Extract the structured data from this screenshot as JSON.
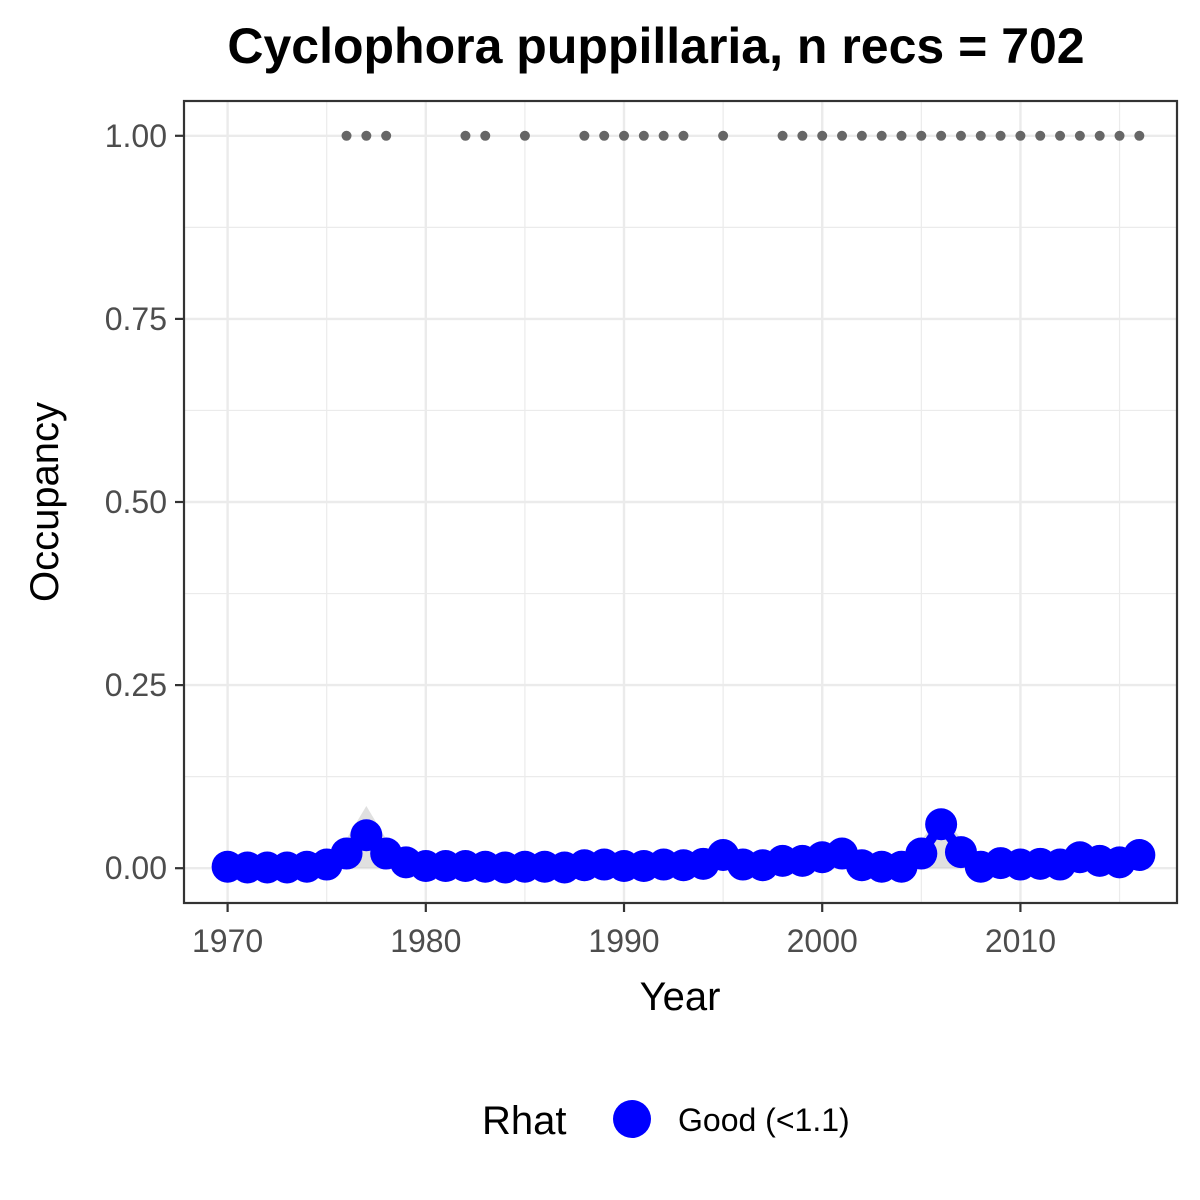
{
  "chart_data": {
    "type": "line",
    "title": "Cyclophora puppillaria, n recs = 702",
    "xlabel": "Year",
    "ylabel": "Occupancy",
    "xlim": [
      1967.8,
      2017.9
    ],
    "ylim": [
      -0.0475,
      1.0475
    ],
    "x_ticks": [
      1970,
      1980,
      1990,
      2000,
      2010
    ],
    "x_tick_labels": [
      "1970",
      "1980",
      "1990",
      "2000",
      "2010"
    ],
    "y_ticks": [
      0,
      0.25,
      0.5,
      0.75,
      1.0
    ],
    "y_tick_labels": [
      "0.00",
      "0.25",
      "0.50",
      "0.75",
      "1.00"
    ],
    "grid": true,
    "legend": {
      "title": "Rhat",
      "placement": "bottom",
      "entries": [
        "Good (<1.1)"
      ]
    },
    "colors": {
      "series": "#0000ff",
      "records": "#666666",
      "ribbon": "#cccccc",
      "grid": "#ebebeb"
    },
    "series": [
      {
        "name": "Good (<1.1)",
        "x": [
          1970,
          1971,
          1972,
          1973,
          1974,
          1975,
          1976,
          1977,
          1978,
          1979,
          1980,
          1981,
          1982,
          1983,
          1984,
          1985,
          1986,
          1987,
          1988,
          1989,
          1990,
          1991,
          1992,
          1993,
          1994,
          1995,
          1996,
          1997,
          1998,
          1999,
          2000,
          2001,
          2002,
          2003,
          2004,
          2005,
          2006,
          2007,
          2008,
          2009,
          2010,
          2011,
          2012,
          2013,
          2014,
          2015,
          2016
        ],
        "values": [
          0.002,
          0.001,
          0.001,
          0.001,
          0.002,
          0.005,
          0.02,
          0.045,
          0.02,
          0.008,
          0.003,
          0.003,
          0.003,
          0.002,
          0.001,
          0.002,
          0.002,
          0.001,
          0.004,
          0.005,
          0.003,
          0.003,
          0.005,
          0.004,
          0.006,
          0.018,
          0.005,
          0.004,
          0.01,
          0.01,
          0.015,
          0.02,
          0.004,
          0.002,
          0.002,
          0.02,
          0.06,
          0.022,
          0.002,
          0.007,
          0.005,
          0.006,
          0.005,
          0.015,
          0.01,
          0.008,
          0.018
        ],
        "upper": [
          0.004,
          0.003,
          0.003,
          0.003,
          0.004,
          0.01,
          0.04,
          0.085,
          0.04,
          0.015,
          0.006,
          0.006,
          0.006,
          0.004,
          0.003,
          0.004,
          0.004,
          0.003,
          0.008,
          0.01,
          0.006,
          0.006,
          0.01,
          0.008,
          0.012,
          0.035,
          0.01,
          0.008,
          0.02,
          0.02,
          0.03,
          0.038,
          0.008,
          0.004,
          0.004,
          0.038,
          0.075,
          0.04,
          0.004,
          0.014,
          0.01,
          0.012,
          0.01,
          0.03,
          0.02,
          0.016,
          0.035
        ]
      }
    ],
    "records": {
      "y": 1.0,
      "x": [
        1976,
        1977,
        1978,
        1982,
        1983,
        1985,
        1988,
        1989,
        1990,
        1991,
        1992,
        1993,
        1995,
        1998,
        1999,
        2000,
        2001,
        2002,
        2003,
        2004,
        2005,
        2006,
        2007,
        2008,
        2009,
        2010,
        2011,
        2012,
        2013,
        2014,
        2015,
        2016
      ]
    }
  }
}
